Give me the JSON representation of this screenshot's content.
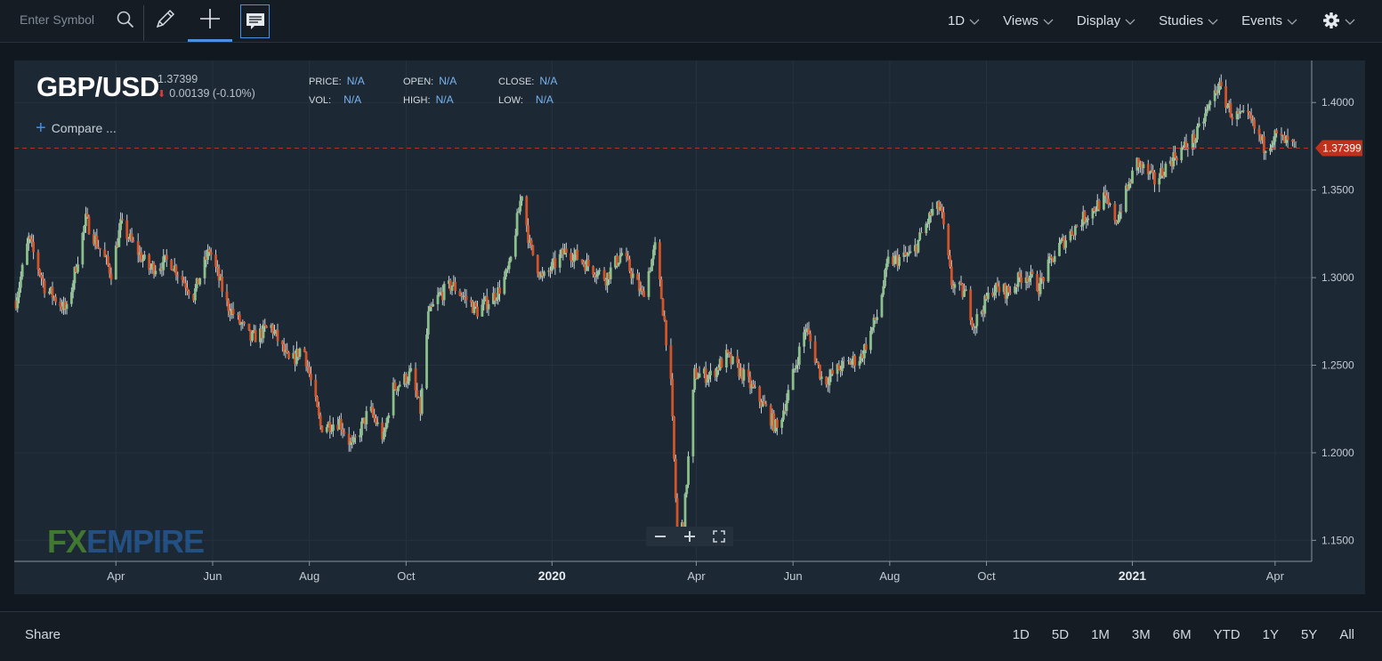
{
  "toolbar": {
    "search_placeholder": "Enter Symbol",
    "menus": [
      {
        "label": "1D"
      },
      {
        "label": "Views"
      },
      {
        "label": "Display"
      },
      {
        "label": "Studies"
      },
      {
        "label": "Events"
      }
    ]
  },
  "quote": {
    "symbol": "GBP/USD",
    "last": "1.37399",
    "change": "0.00139 (-0.10%)",
    "price_label": "PRICE:",
    "price_value": "N/A",
    "vol_label": "VOL:",
    "vol_value": "N/A",
    "open_label": "OPEN:",
    "open_value": "N/A",
    "high_label": "HIGH:",
    "high_value": "N/A",
    "close_label": "CLOSE:",
    "close_value": "N/A",
    "low_label": "LOW:",
    "low_value": "N/A",
    "compare_label": "Compare ...",
    "current_price_tag": "1.37399"
  },
  "branding": {
    "logo_fx": "FX",
    "logo_rest": "EMPIRE"
  },
  "colors": {
    "up": "#8cc08a",
    "down": "#d2552a",
    "price_tag": "#c0311c",
    "grid": "#26323e"
  },
  "chart_data": {
    "type": "candlestick",
    "title": "GBP/USD",
    "ylim": [
      1.138,
      1.424
    ],
    "x_range": [
      "2019-01-28",
      "2021-04-14"
    ],
    "y_ticks": [
      "1.4000",
      "1.3500",
      "1.3000",
      "1.2500",
      "1.2000",
      "1.1500"
    ],
    "x_ticks": [
      {
        "label": "Apr",
        "date": "2019-04-01",
        "bold": false
      },
      {
        "label": "Jun",
        "date": "2019-06-01",
        "bold": false
      },
      {
        "label": "Aug",
        "date": "2019-08-01",
        "bold": false
      },
      {
        "label": "Oct",
        "date": "2019-10-01",
        "bold": false
      },
      {
        "label": "2020",
        "date": "2020-01-01",
        "bold": true
      },
      {
        "label": "Apr",
        "date": "2020-04-01",
        "bold": false
      },
      {
        "label": "Jun",
        "date": "2020-06-01",
        "bold": false
      },
      {
        "label": "Aug",
        "date": "2020-08-01",
        "bold": false
      },
      {
        "label": "Oct",
        "date": "2020-10-01",
        "bold": false
      },
      {
        "label": "2021",
        "date": "2021-01-01",
        "bold": true
      },
      {
        "label": "Apr",
        "date": "2021-04-01",
        "bold": false
      }
    ],
    "current_price": 1.37399,
    "grid": true,
    "series": [
      {
        "price_path": [
          [
            "2019-01-28",
            1.287
          ],
          [
            "2019-02-05",
            1.322
          ],
          [
            "2019-02-15",
            1.295
          ],
          [
            "2019-03-01",
            1.281
          ],
          [
            "2019-03-13",
            1.333
          ],
          [
            "2019-03-29",
            1.303
          ],
          [
            "2019-04-04",
            1.33
          ],
          [
            "2019-04-22",
            1.305
          ],
          [
            "2019-05-05",
            1.31
          ],
          [
            "2019-05-20",
            1.29
          ],
          [
            "2019-05-30",
            1.316
          ],
          [
            "2019-06-10",
            1.285
          ],
          [
            "2019-06-25",
            1.265
          ],
          [
            "2019-07-08",
            1.272
          ],
          [
            "2019-07-20",
            1.25
          ],
          [
            "2019-07-28",
            1.262
          ],
          [
            "2019-08-08",
            1.215
          ],
          [
            "2019-08-20",
            1.218
          ],
          [
            "2019-08-28",
            1.203
          ],
          [
            "2019-09-08",
            1.225
          ],
          [
            "2019-09-17",
            1.208
          ],
          [
            "2019-09-22",
            1.236
          ],
          [
            "2019-10-04",
            1.245
          ],
          [
            "2019-10-10",
            1.224
          ],
          [
            "2019-10-15",
            1.278
          ],
          [
            "2019-10-22",
            1.29
          ],
          [
            "2019-10-30",
            1.296
          ],
          [
            "2019-11-15",
            1.281
          ],
          [
            "2019-11-28",
            1.292
          ],
          [
            "2019-12-05",
            1.305
          ],
          [
            "2019-12-13",
            1.349
          ],
          [
            "2019-12-18",
            1.318
          ],
          [
            "2019-12-26",
            1.299
          ],
          [
            "2020-01-10",
            1.316
          ],
          [
            "2020-01-24",
            1.307
          ],
          [
            "2020-02-04",
            1.3
          ],
          [
            "2020-02-14",
            1.314
          ],
          [
            "2020-02-27",
            1.29
          ],
          [
            "2020-03-06",
            1.317
          ],
          [
            "2020-03-12",
            1.275
          ],
          [
            "2020-03-16",
            1.238
          ],
          [
            "2020-03-20",
            1.153
          ],
          [
            "2020-03-24",
            1.16
          ],
          [
            "2020-03-31",
            1.245
          ],
          [
            "2020-04-10",
            1.244
          ],
          [
            "2020-04-20",
            1.255
          ],
          [
            "2020-04-30",
            1.245
          ],
          [
            "2020-05-15",
            1.225
          ],
          [
            "2020-05-22",
            1.213
          ],
          [
            "2020-05-29",
            1.234
          ],
          [
            "2020-06-09",
            1.272
          ],
          [
            "2020-06-20",
            1.24
          ],
          [
            "2020-07-01",
            1.249
          ],
          [
            "2020-07-14",
            1.255
          ],
          [
            "2020-07-24",
            1.278
          ],
          [
            "2020-07-31",
            1.309
          ],
          [
            "2020-08-15",
            1.313
          ],
          [
            "2020-08-28",
            1.338
          ],
          [
            "2020-09-02",
            1.34
          ],
          [
            "2020-09-09",
            1.297
          ],
          [
            "2020-09-18",
            1.29
          ],
          [
            "2020-09-23",
            1.273
          ],
          [
            "2020-10-05",
            1.294
          ],
          [
            "2020-10-15",
            1.292
          ],
          [
            "2020-10-25",
            1.303
          ],
          [
            "2020-11-03",
            1.295
          ],
          [
            "2020-11-15",
            1.317
          ],
          [
            "2020-11-30",
            1.333
          ],
          [
            "2020-12-14",
            1.345
          ],
          [
            "2020-12-22",
            1.333
          ],
          [
            "2021-01-04",
            1.366
          ],
          [
            "2021-01-15",
            1.355
          ],
          [
            "2021-01-28",
            1.37
          ],
          [
            "2021-02-10",
            1.38
          ],
          [
            "2021-02-24",
            1.41
          ],
          [
            "2021-03-05",
            1.393
          ],
          [
            "2021-03-16",
            1.39
          ],
          [
            "2021-03-25",
            1.375
          ],
          [
            "2021-04-01",
            1.381
          ],
          [
            "2021-04-14",
            1.374
          ]
        ]
      }
    ]
  },
  "bottom": {
    "share_label": "Share",
    "ranges": [
      "1D",
      "5D",
      "1M",
      "3M",
      "6M",
      "YTD",
      "1Y",
      "5Y",
      "All"
    ]
  }
}
